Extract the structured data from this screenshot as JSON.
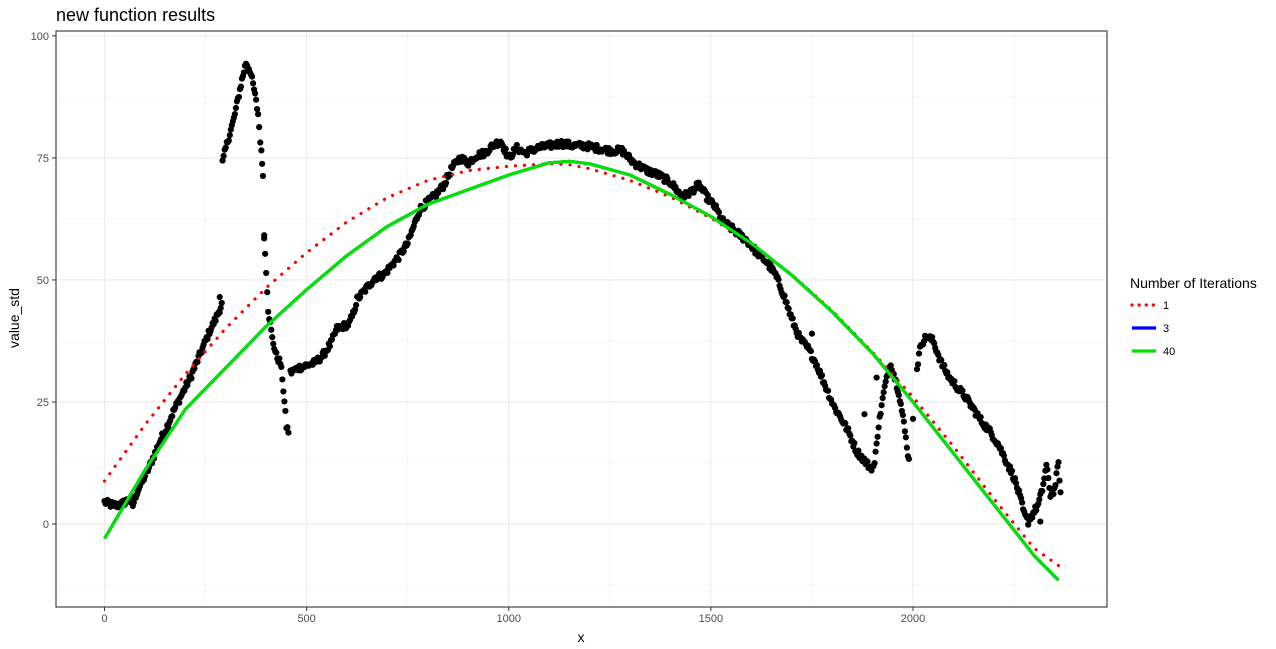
{
  "chart_data": {
    "type": "scatter",
    "title": "new function results",
    "xlabel": "x",
    "ylabel": "value_std",
    "xlim": [
      -120,
      2480
    ],
    "ylim": [
      -17,
      101
    ],
    "x_ticks": [
      0,
      500,
      1000,
      1500,
      2000
    ],
    "x_tick_labels": [
      "0",
      "500",
      "1000",
      "1500",
      "2000"
    ],
    "y_ticks": [
      0,
      25,
      50,
      75,
      100
    ],
    "y_tick_labels": [
      "0",
      "25",
      "50",
      "75",
      "100"
    ],
    "grid": true,
    "points_color": "#000000",
    "points_profile": [
      [
        0,
        4.5
      ],
      [
        15,
        4
      ],
      [
        30,
        3.8
      ],
      [
        45,
        4.2
      ],
      [
        60,
        5
      ],
      [
        70,
        3.8
      ],
      [
        80,
        6.5
      ],
      [
        95,
        9
      ],
      [
        110,
        11.5
      ],
      [
        125,
        14.5
      ],
      [
        140,
        17.5
      ],
      [
        155,
        20
      ],
      [
        170,
        23
      ],
      [
        185,
        25.5
      ],
      [
        200,
        28
      ],
      [
        215,
        30.5
      ],
      [
        230,
        33.5
      ],
      [
        245,
        36.5
      ],
      [
        260,
        39.5
      ],
      [
        275,
        42
      ],
      [
        290,
        45
      ],
      [
        292,
        74
      ],
      [
        300,
        77
      ],
      [
        310,
        80
      ],
      [
        320,
        83
      ],
      [
        330,
        87
      ],
      [
        340,
        91
      ],
      [
        350,
        94.5
      ],
      [
        360,
        93
      ],
      [
        370,
        89
      ],
      [
        380,
        84
      ],
      [
        388,
        76
      ],
      [
        392,
        72
      ],
      [
        395,
        59
      ],
      [
        400,
        52
      ],
      [
        405,
        44
      ],
      [
        415,
        38
      ],
      [
        425,
        34.5
      ],
      [
        435,
        33
      ],
      [
        440,
        30
      ],
      [
        445,
        25
      ],
      [
        450,
        20
      ],
      [
        455,
        19
      ],
      [
        460,
        31
      ],
      [
        480,
        32
      ],
      [
        500,
        32.5
      ],
      [
        520,
        33
      ],
      [
        540,
        34.5
      ],
      [
        560,
        37
      ],
      [
        575,
        40
      ],
      [
        590,
        40.5
      ],
      [
        605,
        41
      ],
      [
        615,
        43
      ],
      [
        625,
        46
      ],
      [
        640,
        47.5
      ],
      [
        655,
        49
      ],
      [
        670,
        50.5
      ],
      [
        690,
        51
      ],
      [
        710,
        53
      ],
      [
        730,
        55
      ],
      [
        750,
        57.5
      ],
      [
        765,
        61
      ],
      [
        780,
        64.5
      ],
      [
        800,
        66
      ],
      [
        820,
        67.5
      ],
      [
        840,
        69.5
      ],
      [
        860,
        73
      ],
      [
        880,
        75
      ],
      [
        900,
        74
      ],
      [
        920,
        75.5
      ],
      [
        940,
        76
      ],
      [
        960,
        77.5
      ],
      [
        980,
        78.5
      ],
      [
        1000,
        75
      ],
      [
        1020,
        77
      ],
      [
        1040,
        76
      ],
      [
        1070,
        77
      ],
      [
        1100,
        77.5
      ],
      [
        1130,
        78
      ],
      [
        1160,
        77.5
      ],
      [
        1190,
        77.5
      ],
      [
        1220,
        77
      ],
      [
        1250,
        76.5
      ],
      [
        1280,
        76.5
      ],
      [
        1310,
        74
      ],
      [
        1340,
        72.5
      ],
      [
        1370,
        71.5
      ],
      [
        1400,
        70
      ],
      [
        1430,
        67
      ],
      [
        1450,
        68
      ],
      [
        1470,
        69.5
      ],
      [
        1490,
        67
      ],
      [
        1510,
        65
      ],
      [
        1530,
        62
      ],
      [
        1560,
        60
      ],
      [
        1590,
        58
      ],
      [
        1610,
        56
      ],
      [
        1640,
        53.5
      ],
      [
        1660,
        51
      ],
      [
        1680,
        47
      ],
      [
        1700,
        42
      ],
      [
        1720,
        38
      ],
      [
        1740,
        36
      ],
      [
        1760,
        33
      ],
      [
        1775,
        30
      ],
      [
        1790,
        27
      ],
      [
        1805,
        24
      ],
      [
        1820,
        22
      ],
      [
        1840,
        19
      ],
      [
        1860,
        15
      ],
      [
        1880,
        13
      ],
      [
        1895,
        11.5
      ],
      [
        1905,
        12
      ],
      [
        1910,
        17
      ],
      [
        1920,
        23
      ],
      [
        1930,
        28
      ],
      [
        1945,
        33
      ],
      [
        1955,
        30
      ],
      [
        1965,
        27
      ],
      [
        1975,
        22
      ],
      [
        1985,
        16
      ],
      [
        1990,
        13
      ],
      [
        2000,
        22
      ],
      [
        2010,
        32
      ],
      [
        2020,
        37
      ],
      [
        2035,
        38.5
      ],
      [
        2050,
        37.5
      ],
      [
        2070,
        33
      ],
      [
        2090,
        30
      ],
      [
        2110,
        28
      ],
      [
        2130,
        26
      ],
      [
        2150,
        23.5
      ],
      [
        2170,
        21
      ],
      [
        2190,
        19
      ],
      [
        2210,
        16.5
      ],
      [
        2230,
        13
      ],
      [
        2250,
        9.5
      ],
      [
        2265,
        5.5
      ],
      [
        2275,
        2
      ],
      [
        2285,
        0.5
      ],
      [
        2310,
        4
      ],
      [
        2320,
        7
      ],
      [
        2330,
        12
      ],
      [
        2340,
        6
      ],
      [
        2350,
        7
      ],
      [
        2360,
        12.5
      ],
      [
        2365,
        6.5
      ]
    ],
    "isolated_points": [
      [
        285,
        46.5
      ],
      [
        395,
        58.5
      ],
      [
        1750,
        39
      ],
      [
        1880,
        22.5
      ],
      [
        1910,
        30
      ],
      [
        2300,
        2.5
      ],
      [
        2315,
        0.5
      ]
    ],
    "series": [
      {
        "name": "1",
        "color": "#ff0000",
        "style": "dotted",
        "x": [
          0,
          100,
          200,
          300,
          400,
          500,
          600,
          700,
          800,
          900,
          1000,
          1100,
          1150,
          1200,
          1300,
          1400,
          1500,
          1600,
          1700,
          1800,
          1900,
          2000,
          2100,
          2200,
          2300,
          2360
        ],
        "y": [
          8.8,
          20.3,
          30.7,
          40.1,
          48.4,
          55.6,
          61.9,
          66.9,
          70.4,
          72.4,
          73.3,
          73.8,
          73.6,
          72.8,
          70.4,
          67.0,
          62.7,
          57.4,
          51.1,
          43.7,
          35.2,
          26.0,
          15.9,
          5.2,
          -5.0,
          -8.5
        ]
      },
      {
        "name": "3",
        "color": "#0000ff",
        "style": "solid",
        "x": [
          0,
          100,
          200,
          300,
          400,
          500,
          600,
          700,
          800,
          900,
          1000,
          1100,
          1150,
          1200,
          1300,
          1400,
          1500,
          1600,
          1700,
          1800,
          1900,
          2000,
          2100,
          2200,
          2300,
          2360
        ],
        "y": [
          -3.0,
          11.0,
          23.5,
          32.0,
          40.5,
          48.0,
          55.0,
          61.0,
          65.5,
          68.5,
          71.5,
          74.0,
          74.3,
          73.8,
          71.5,
          67.5,
          63.0,
          57.5,
          51.0,
          43.5,
          35.0,
          25.0,
          14.5,
          4.0,
          -6.5,
          -11.5
        ]
      },
      {
        "name": "40",
        "color": "#00e400",
        "style": "solid",
        "x": [
          0,
          100,
          200,
          300,
          400,
          500,
          600,
          700,
          800,
          900,
          1000,
          1100,
          1150,
          1200,
          1300,
          1400,
          1500,
          1600,
          1700,
          1800,
          1900,
          2000,
          2100,
          2200,
          2300,
          2360
        ],
        "y": [
          -3.0,
          11.0,
          23.5,
          32.0,
          40.5,
          48.0,
          55.0,
          61.0,
          65.5,
          68.5,
          71.5,
          74.0,
          74.3,
          73.8,
          71.5,
          67.5,
          63.0,
          57.5,
          51.0,
          43.5,
          35.0,
          25.0,
          14.5,
          4.0,
          -6.5,
          -11.5
        ]
      }
    ],
    "legend": {
      "title": "Number of Iterations",
      "placement": "right",
      "entries": [
        "1",
        "3",
        "40"
      ]
    }
  }
}
